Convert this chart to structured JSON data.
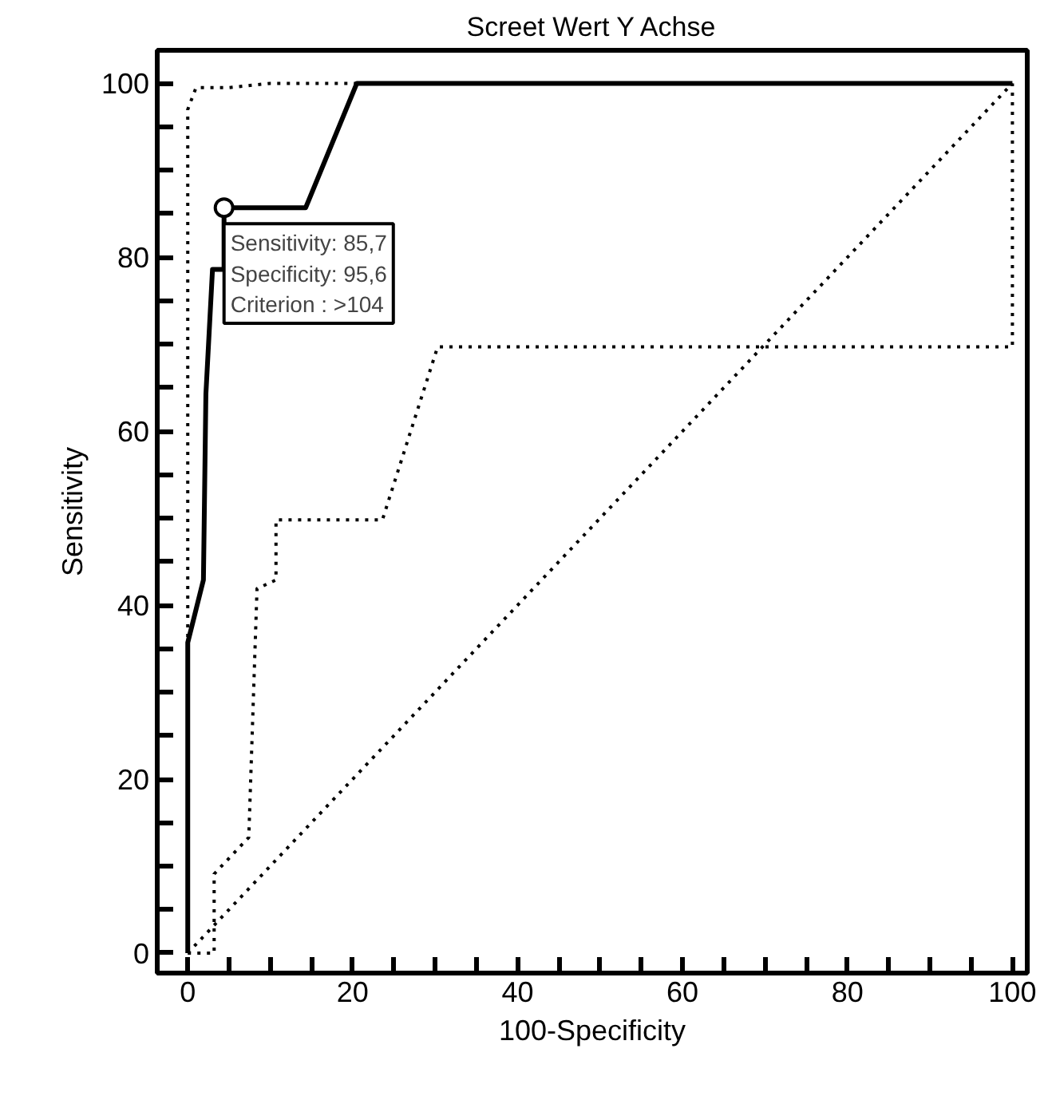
{
  "chart_data": {
    "type": "line",
    "title": "Screet Wert Y Achse",
    "xlabel": "100-Specificity",
    "ylabel": "Sensitivity",
    "xlim": [
      -3.7,
      101.8
    ],
    "ylim": [
      -2.3,
      103.8
    ],
    "xticks": [
      0,
      {
        "value": 5,
        "label": null
      },
      {
        "value": 10,
        "label": null
      },
      {
        "value": 15,
        "label": null
      },
      20,
      {
        "value": 25,
        "label": null
      },
      {
        "value": 30,
        "label": null
      },
      {
        "value": 35,
        "label": null
      },
      40,
      {
        "value": 45,
        "label": null
      },
      {
        "value": 50,
        "label": null
      },
      {
        "value": 55,
        "label": null
      },
      60,
      {
        "value": 65,
        "label": null
      },
      {
        "value": 70,
        "label": null
      },
      {
        "value": 75,
        "label": null
      },
      80,
      {
        "value": 85,
        "label": null
      },
      {
        "value": 90,
        "label": null
      },
      {
        "value": 95,
        "label": null
      },
      100
    ],
    "yticks": [
      0,
      {
        "value": 5,
        "label": null
      },
      {
        "value": 10,
        "label": null
      },
      {
        "value": 15,
        "label": null
      },
      20,
      {
        "value": 25,
        "label": null
      },
      {
        "value": 30,
        "label": null
      },
      {
        "value": 35,
        "label": null
      },
      40,
      {
        "value": 45,
        "label": null
      },
      {
        "value": 50,
        "label": null
      },
      {
        "value": 55,
        "label": null
      },
      60,
      {
        "value": 65,
        "label": null
      },
      {
        "value": 70,
        "label": null
      },
      {
        "value": 75,
        "label": null
      },
      80,
      {
        "value": 85,
        "label": null
      },
      {
        "value": 90,
        "label": null
      },
      {
        "value": 95,
        "label": null
      },
      100
    ],
    "grid": false,
    "series": [
      {
        "line_style": "dotted",
        "color": "#000000",
        "x": [
          0,
          100
        ],
        "values": [
          0,
          100
        ]
      },
      {
        "line_style": "dotted",
        "color": "#000000",
        "x": [
          0,
          0,
          1,
          5,
          10,
          100
        ],
        "values": [
          0,
          97,
          99.5,
          99.5,
          100,
          100
        ]
      },
      {
        "line_style": "dotted",
        "color": "#000000",
        "x": [
          0,
          3.2,
          3.2,
          7.4,
          8.4,
          10.7,
          10.7,
          23.6,
          30.3,
          100,
          100
        ],
        "values": [
          0,
          0,
          9.1,
          13.3,
          41.9,
          42.9,
          49.8,
          49.8,
          69.7,
          69.7,
          100
        ]
      },
      {
        "line_style": "solid",
        "color": "#000000",
        "x": [
          0,
          0,
          1.9,
          2.2,
          3,
          4.4,
          4.4,
          14.3,
          20.5,
          100
        ],
        "values": [
          0,
          35.7,
          42.9,
          64.3,
          78.6,
          78.6,
          85.7,
          85.7,
          100,
          100
        ]
      },
      {
        "type": "scatter",
        "marker": "circle",
        "color": "#000000",
        "x": [
          4.4
        ],
        "values": [
          85.7
        ]
      }
    ],
    "annotations": [
      {
        "text": "Sensitivity: 85,7\nSpecificity: 95,6\nCriterion : >104",
        "x": 4.4,
        "y": 85.7
      }
    ]
  }
}
